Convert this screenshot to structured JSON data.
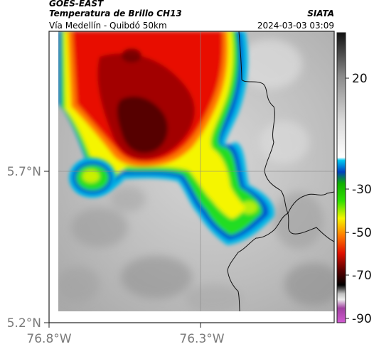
{
  "header": {
    "source": "GOES-EAST",
    "product": "Temperatura de Brillo CH13",
    "region": "Vía Medellín - Quibdó 50km",
    "brand": "SIATA",
    "timestamp": "2024-03-03 03:09"
  },
  "axes": {
    "lat_ticks": [
      "5.7°N",
      "5.2°N"
    ],
    "lon_ticks": [
      "76.8°W",
      "76.3°W"
    ]
  },
  "colorbar": {
    "labels": [
      "20",
      "-30",
      "-50",
      "-70",
      "-90"
    ],
    "colors": {
      "warm_gray": "#c8c8c8",
      "cyan": "#00b7e6",
      "blue": "#0055d4",
      "green": "#22dd22",
      "yellow": "#f5f500",
      "orange": "#ff7a00",
      "red": "#e81000",
      "dark_red": "#6a0000",
      "black": "#000000",
      "magenta": "#c040c0"
    }
  }
}
